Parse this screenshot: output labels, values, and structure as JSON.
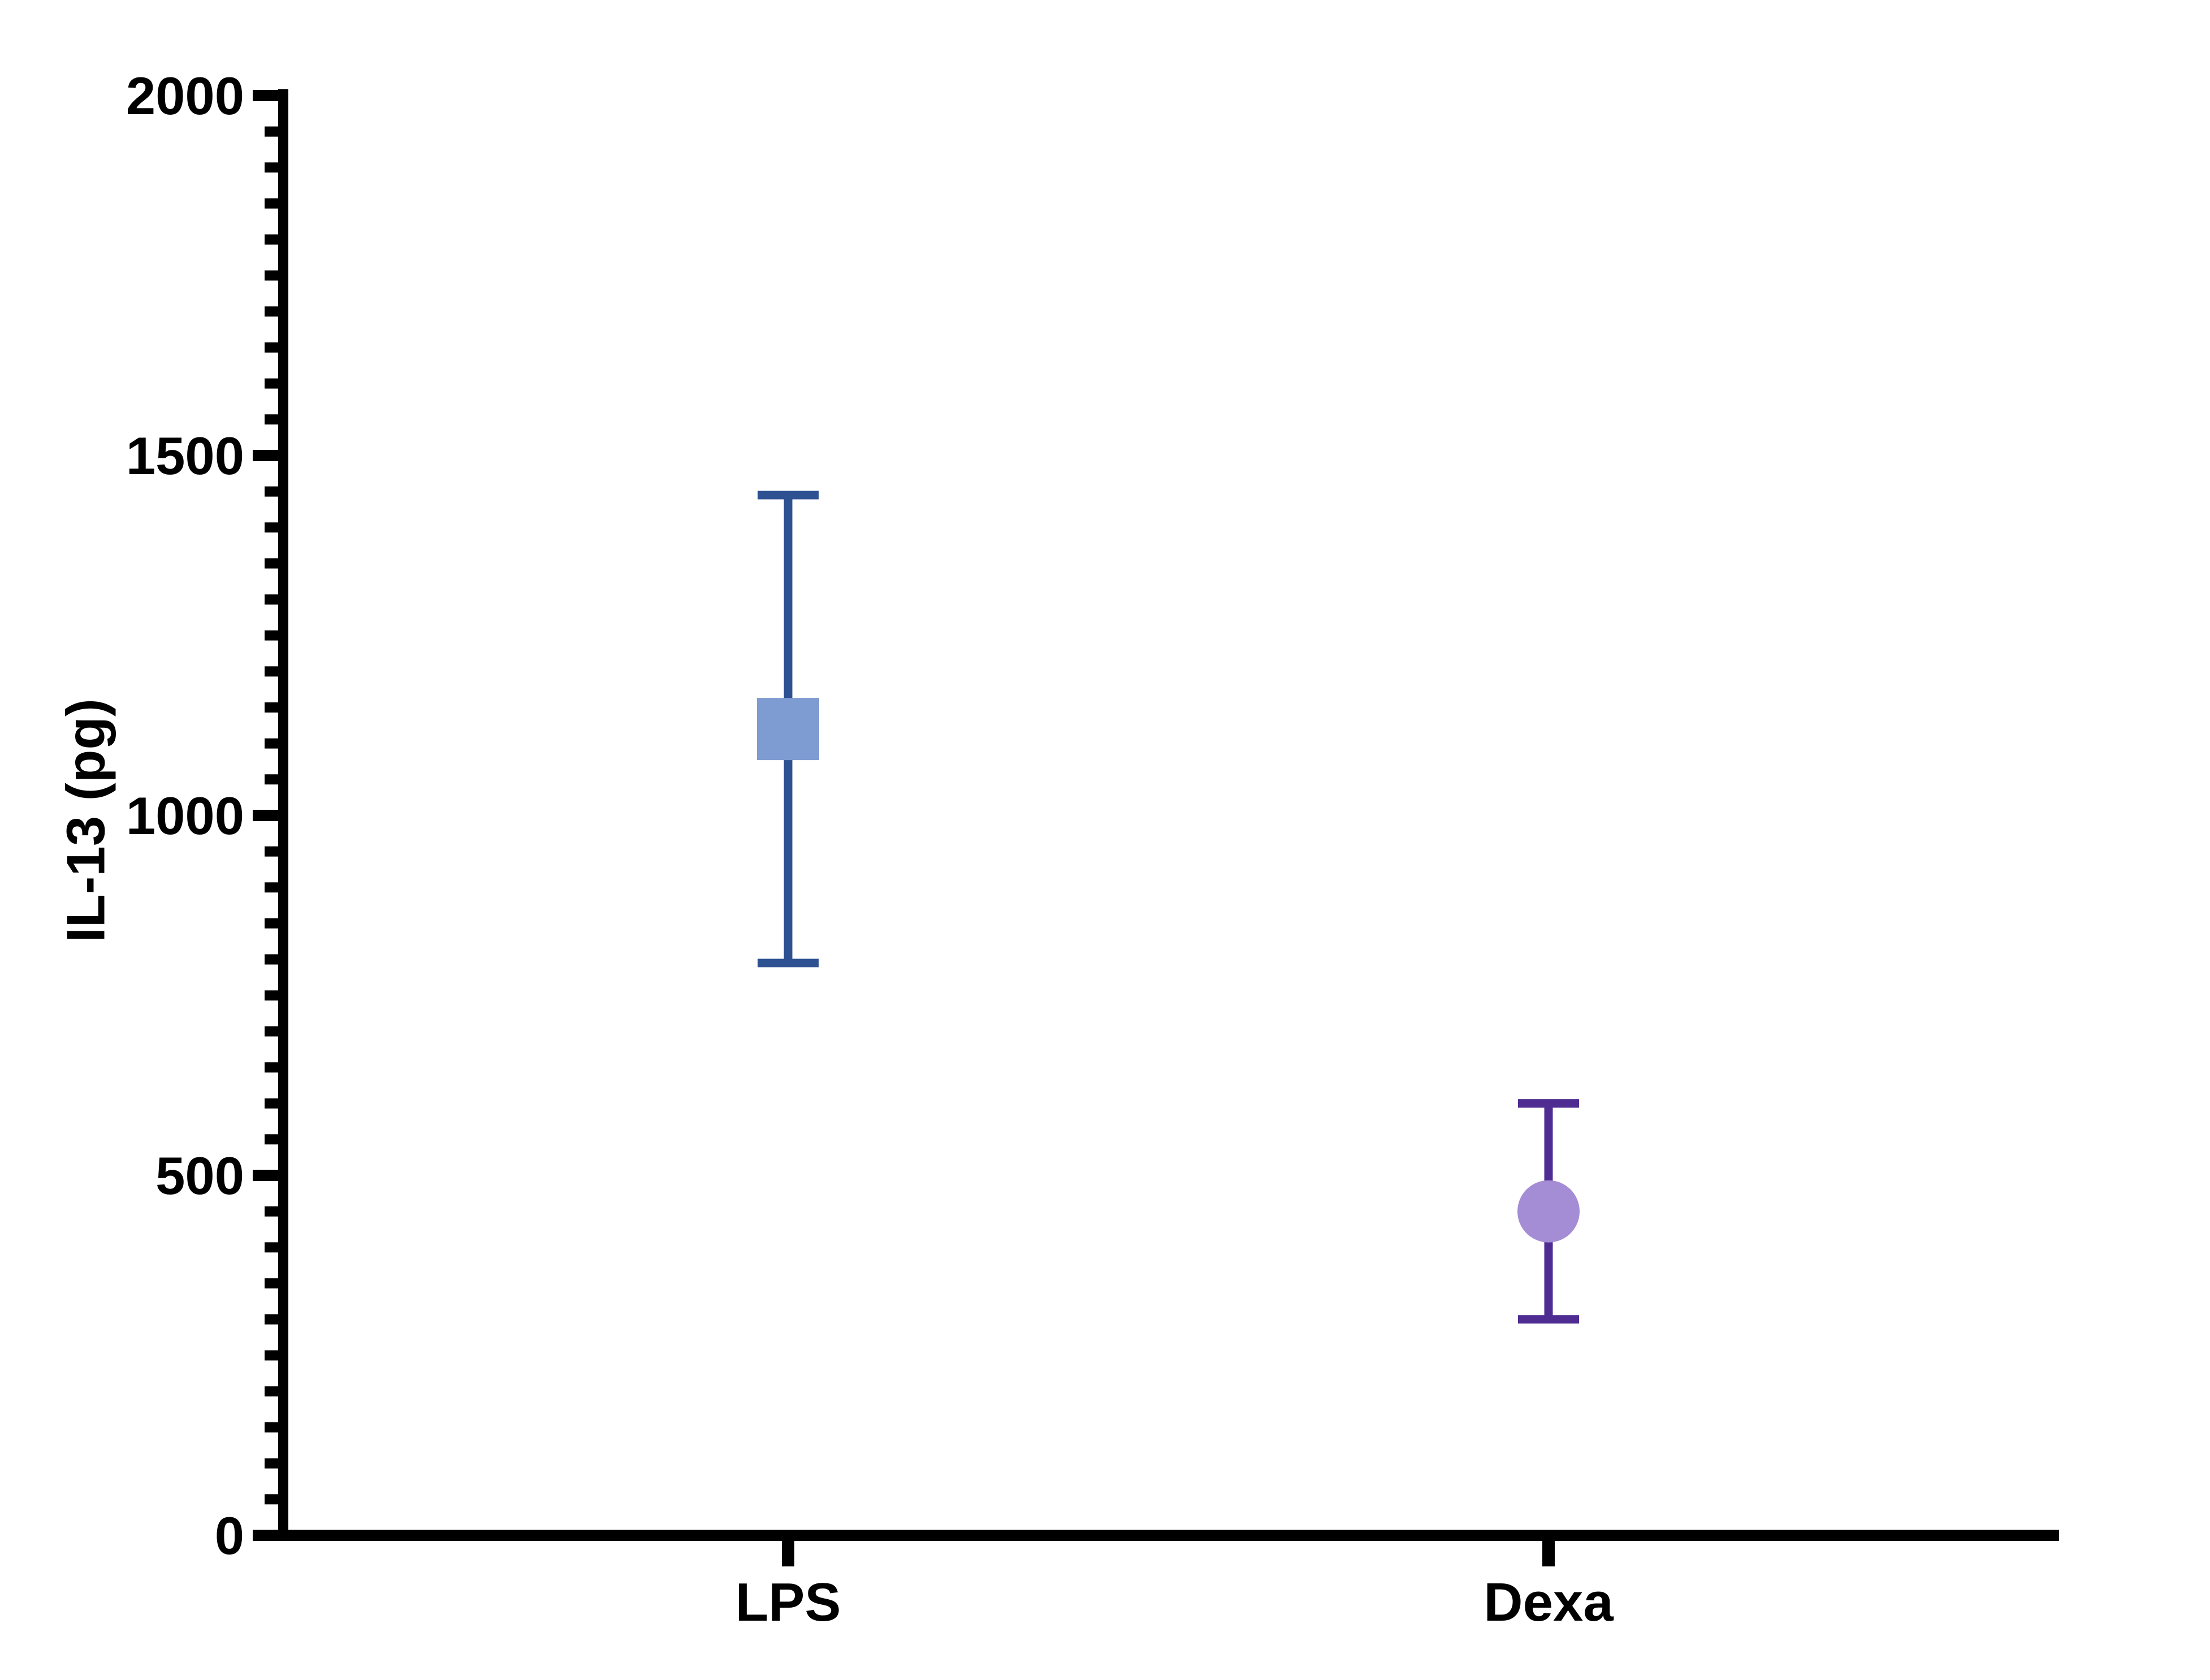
{
  "chart_data": {
    "type": "scatter",
    "title": "",
    "ylabel": "IL-13 (pg)",
    "xlabel": "",
    "ylim": [
      0,
      2000
    ],
    "y_major_tick_interval": 500,
    "y_minor_tick_interval": 50,
    "y_tick_labels": [
      "0",
      "500",
      "1000",
      "1500",
      "2000"
    ],
    "categories": [
      "LPS",
      "Dexa"
    ],
    "series": [
      {
        "name": "LPS",
        "marker": "square",
        "mean": 1120,
        "error_low": 795,
        "error_high": 1445,
        "marker_color": "#7E9BD2",
        "error_color": "#2E5191"
      },
      {
        "name": "Dexa",
        "marker": "circle",
        "mean": 450,
        "error_low": 300,
        "error_high": 600,
        "marker_color": "#A48DD5",
        "error_color": "#4E2C91"
      }
    ],
    "axis_color": "#000000",
    "label_color": "#000000",
    "background_color": "#FFFFFF",
    "grid": false,
    "legend": "none"
  }
}
